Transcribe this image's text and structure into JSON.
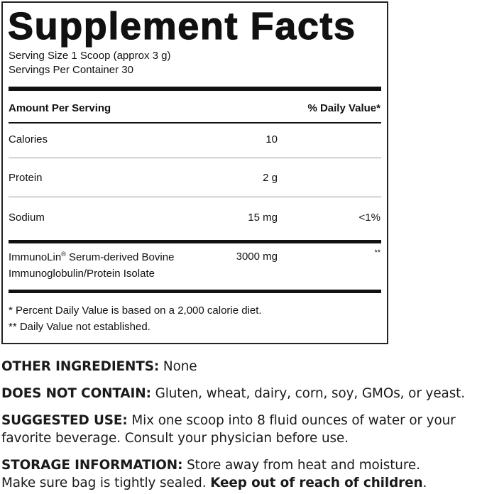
{
  "title": "Supplement Facts",
  "serving_size": "Serving Size 1 Scoop (approx 3 g)",
  "servings_per_container": "Servings Per Container 30",
  "header": {
    "amount": "Amount Per Serving",
    "dv": "% Daily Value*"
  },
  "rows": [
    {
      "name": "Calories",
      "amount": "10",
      "dv": ""
    },
    {
      "name": "Protein",
      "amount": "2 g",
      "dv": ""
    },
    {
      "name": "Sodium",
      "amount": "15 mg",
      "dv": "<1%"
    }
  ],
  "ingredient": {
    "line1": "ImmunoLin",
    "reg": "®",
    "line1b": " Serum-derived Bovine",
    "line2": "Immunoglobulin/Protein Isolate",
    "amount": "3000 mg",
    "dv": "**"
  },
  "footnotes": [
    "* Percent Daily Value is based on a 2,000 calorie diet.",
    "** Daily Value not established."
  ],
  "other": {
    "label": "OTHER INGREDIENTS:",
    "text": " None"
  },
  "dnc": {
    "label": "DOES NOT CONTAIN:",
    "text": " Gluten, wheat, dairy, corn, soy, GMOs, or yeast."
  },
  "use": {
    "label": "SUGGESTED USE:",
    "text1": " Mix one scoop into 8 fluid ounces of water or your",
    "text2": "favorite beverage. Consult your physician before use."
  },
  "storage": {
    "label": "STORAGE INFORMATION:",
    "text1": " Store away from heat and moisture.",
    "text2": "Make sure bag is tightly sealed. ",
    "bold": "Keep out of reach of children",
    "end": "."
  }
}
